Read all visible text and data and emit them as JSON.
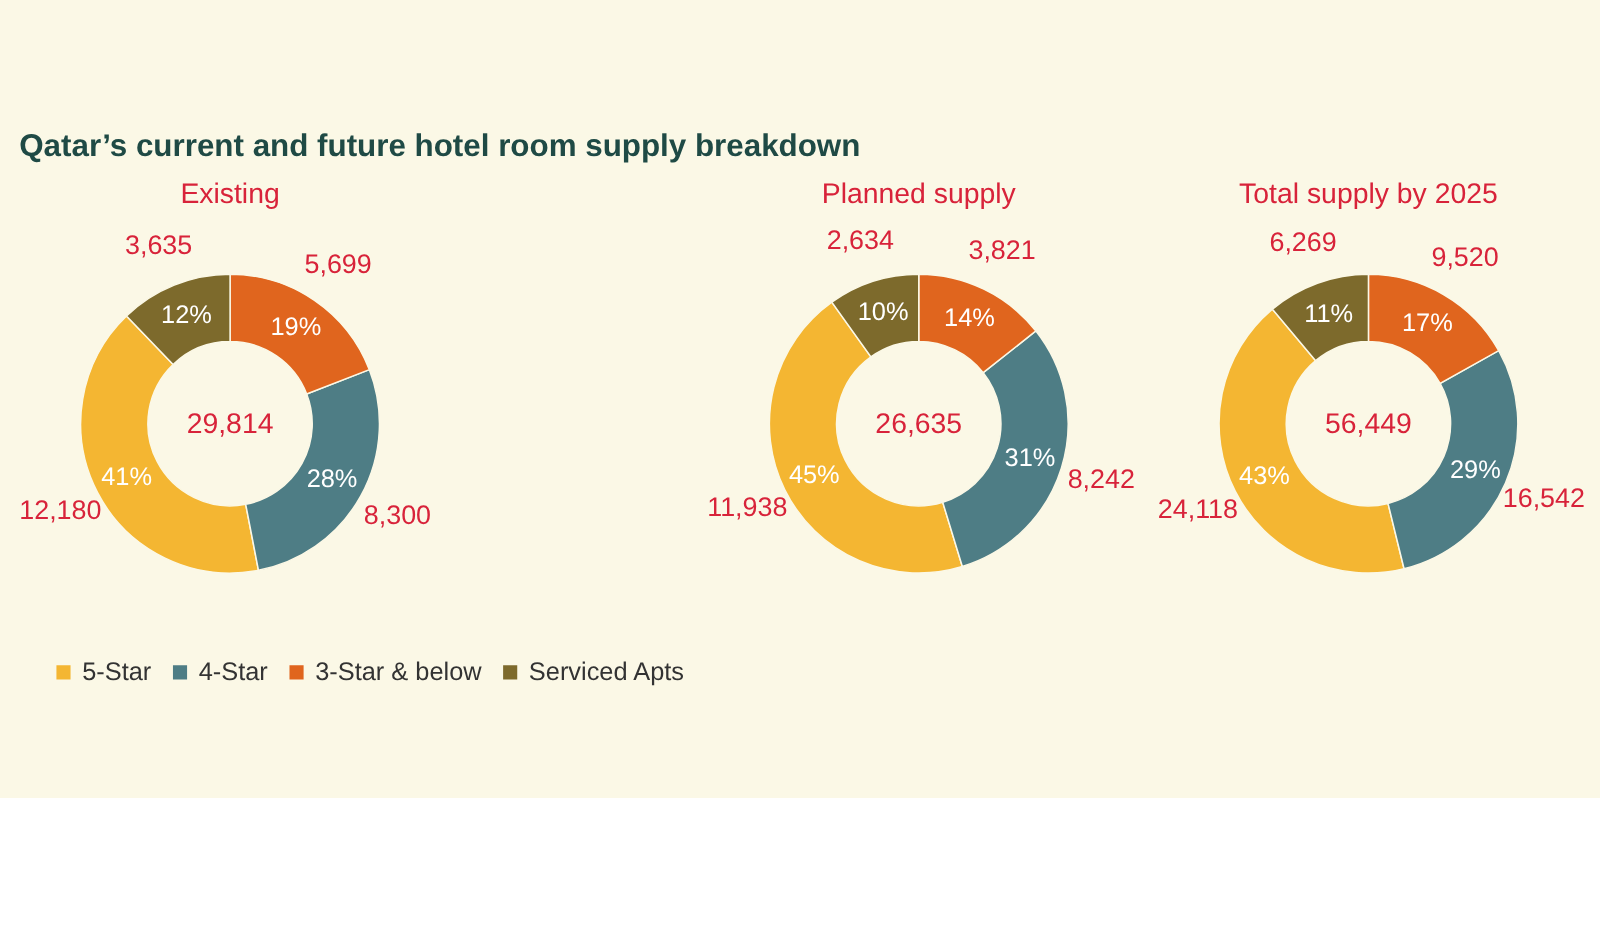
{
  "chart_data": [
    {
      "type": "donut",
      "title": "Existing",
      "categories": [
        "5-Star",
        "4-Star",
        "3-Star & below",
        "Serviced Apts"
      ],
      "values": [
        12180,
        8300,
        5699,
        3635
      ],
      "value_labels": [
        "12,180",
        "8,300",
        "5,699",
        "3,635"
      ],
      "colors": [
        "#f4b632",
        "#4e7d85",
        "#e0651e",
        "#7d6a2c"
      ],
      "legend": "bottom",
      "annotations": [
        "41%",
        "28%",
        "19%",
        "12%",
        "29,814",
        "Qatar’s current and future hotel room supply breakdown"
      ]
    },
    {
      "type": "donut",
      "title": "Planned supply",
      "categories": [
        null,
        null,
        null,
        null
      ],
      "values": [
        11938,
        8242,
        3821,
        2634
      ],
      "value_labels": [
        "11,938",
        "8,242",
        "3,821",
        "2,634"
      ],
      "colors": [
        "#f4b632",
        "#4e7d85",
        "#e0651e",
        "#7d6a2c"
      ],
      "annotations": [
        "45%",
        "31%",
        "14%",
        "10%",
        "26,635"
      ]
    },
    {
      "type": "donut",
      "title": "Total supply by 2025",
      "categories": [
        null,
        null,
        null,
        null
      ],
      "values": [
        24118,
        16542,
        9520,
        6269
      ],
      "value_labels": [
        "24,118",
        "16,542",
        "9,520",
        "6,269"
      ],
      "colors": [
        "#f4b632",
        "#4e7d85",
        "#e0651e",
        "#7d6a2c"
      ],
      "annotations": [
        "43%",
        "29%",
        "17%",
        "11%",
        "56,449"
      ]
    }
  ]
}
